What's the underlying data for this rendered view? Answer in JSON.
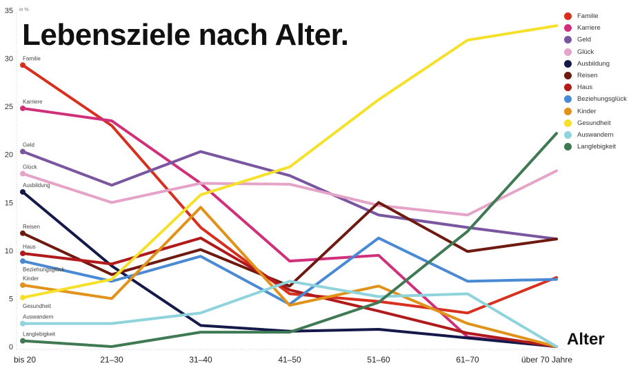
{
  "chart_data": {
    "type": "line",
    "title": "Lebensziele nach Alter.",
    "xlabel": "Alter",
    "ylabel": "in %",
    "ylim": [
      0,
      35
    ],
    "yticks": [
      0,
      5,
      10,
      15,
      20,
      25,
      30,
      35
    ],
    "categories": [
      "bis 20",
      "21–30",
      "31–40",
      "41–50",
      "51–60",
      "61–70",
      "über 70 Jahre"
    ],
    "grid": false,
    "legend_position": "right",
    "series": [
      {
        "name": "Familie",
        "color": "#d7301f",
        "values": [
          29.3,
          23.0,
          12.4,
          5.5,
          4.7,
          3.5,
          7.2
        ]
      },
      {
        "name": "Karriere",
        "color": "#d0307a",
        "values": [
          24.8,
          23.5,
          17.0,
          8.9,
          9.5,
          1.0,
          0
        ]
      },
      {
        "name": "Geld",
        "color": "#7a55a0",
        "values": [
          20.3,
          16.8,
          20.3,
          17.8,
          13.7,
          12.4,
          11.2
        ]
      },
      {
        "name": "Glück",
        "color": "#e6a3c8",
        "values": [
          18.0,
          15.0,
          17.0,
          16.9,
          14.7,
          13.7,
          18.3
        ]
      },
      {
        "name": "Ausbildung",
        "color": "#15194a",
        "values": [
          16.1,
          8.4,
          2.2,
          1.6,
          1.8,
          0.9,
          0
        ]
      },
      {
        "name": "Reisen",
        "color": "#6e1a10",
        "values": [
          11.8,
          7.5,
          10.1,
          6.3,
          15.0,
          9.9,
          11.2
        ]
      },
      {
        "name": "Haus",
        "color": "#b01a1a",
        "values": [
          9.7,
          8.6,
          11.3,
          5.9,
          3.7,
          1.4,
          0
        ]
      },
      {
        "name": "Beziehungsglück",
        "color": "#4a8ad4",
        "values": [
          8.9,
          6.8,
          9.4,
          4.4,
          11.3,
          6.8,
          7.0
        ]
      },
      {
        "name": "Kinder",
        "color": "#e0921a",
        "values": [
          6.4,
          5.0,
          14.5,
          4.3,
          6.3,
          2.4,
          0
        ]
      },
      {
        "name": "Gesundheit",
        "color": "#f5e02a",
        "values": [
          5.1,
          7.0,
          15.8,
          18.7,
          25.7,
          31.9,
          33.4
        ]
      },
      {
        "name": "Auswandern",
        "color": "#8fd4dc",
        "values": [
          2.4,
          2.4,
          3.5,
          6.8,
          5.2,
          5.5,
          0
        ]
      },
      {
        "name": "Langlebigkeit",
        "color": "#3f7a55",
        "values": [
          0.6,
          0,
          1.5,
          1.5,
          4.6,
          12.0,
          22.2
        ]
      }
    ]
  }
}
